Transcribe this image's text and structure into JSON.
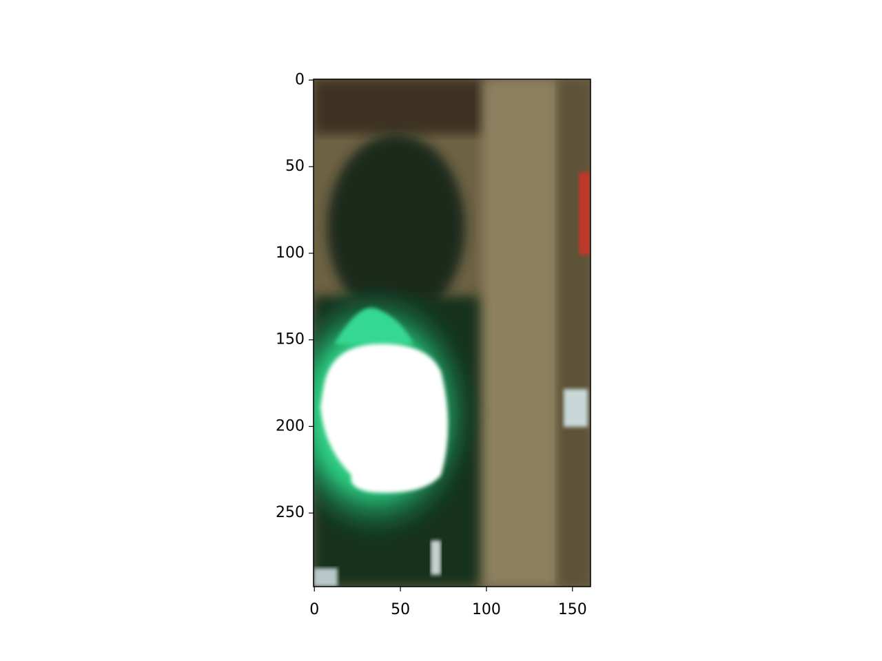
{
  "chart_data": {
    "type": "image",
    "xlim": [
      -0.5,
      160.5
    ],
    "ylim": [
      292.5,
      -0.5
    ],
    "xticks": [
      0,
      50,
      100,
      150
    ],
    "yticks": [
      0,
      50,
      100,
      150,
      200,
      250
    ]
  }
}
